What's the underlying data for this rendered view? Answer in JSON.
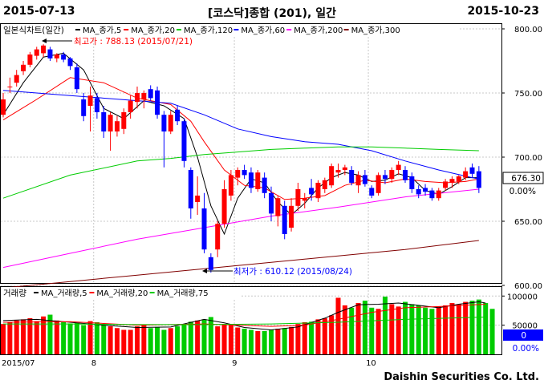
{
  "header": {
    "start_date": "2015-07-13",
    "title": "[코스닥]종합 (201), 일간",
    "end_date": "2015-10-23"
  },
  "legend": {
    "price_label": "일본식차트(일간)",
    "ma_items": [
      {
        "label": "MA_종가,5",
        "color": "#000000"
      },
      {
        "label": "MA_종가,20",
        "color": "#ff0000"
      },
      {
        "label": "MA_종가,120",
        "color": "#00cc00"
      },
      {
        "label": "MA_종가,60",
        "color": "#0000ff"
      },
      {
        "label": "MA_종가,200",
        "color": "#ff00ff"
      },
      {
        "label": "MA_종가,300",
        "color": "#800000"
      }
    ],
    "volume_label": "거래량",
    "vol_items": [
      {
        "label": "MA_거래량,5",
        "color": "#000000"
      },
      {
        "label": "MA_거래량,20",
        "color": "#ff0000"
      },
      {
        "label": "MA_거래량,75",
        "color": "#00cc00"
      }
    ]
  },
  "annotations": {
    "high": "최고가 : 788.13 (2015/07/21)",
    "low": "최저가 : 610.12 (2015/08/24)"
  },
  "price_axis": {
    "ticks": [
      {
        "value": 800,
        "label": "800.00"
      },
      {
        "value": 750,
        "label": "750.00"
      },
      {
        "value": 700,
        "label": "700.00"
      },
      {
        "value": 650,
        "label": "650.00"
      },
      {
        "value": 600,
        "label": "600.00"
      }
    ],
    "current_value": "676.30",
    "current_change": "0.00%"
  },
  "volume_axis": {
    "ticks": [
      {
        "value": 100000,
        "label": "100000"
      },
      {
        "value": 50000,
        "label": "50000"
      }
    ],
    "current_value": "0",
    "current_change": "0.00%"
  },
  "x_axis": {
    "labels": [
      {
        "index": 0,
        "label": "2015/07"
      },
      {
        "index": 14,
        "label": "8"
      },
      {
        "index": 35,
        "label": "9"
      },
      {
        "index": 55,
        "label": "10"
      }
    ]
  },
  "footer": {
    "company": "Daishin Securities Co. Ltd."
  },
  "colors": {
    "up": "#ff0000",
    "down": "#0000ff",
    "vol_up": "#ff0000",
    "vol_down": "#00cc00",
    "current_box": "#0000ff"
  },
  "chart_data": {
    "type": "candlestick",
    "price_range": [
      600,
      800
    ],
    "volume_range": [
      0,
      110000
    ],
    "candles": [
      {
        "o": 733,
        "h": 750,
        "l": 731,
        "c": 745
      },
      {
        "o": 755,
        "h": 762,
        "l": 750,
        "c": 755
      },
      {
        "o": 758,
        "h": 768,
        "l": 755,
        "c": 764
      },
      {
        "o": 767,
        "h": 775,
        "l": 764,
        "c": 772
      },
      {
        "o": 772,
        "h": 782,
        "l": 770,
        "c": 780
      },
      {
        "o": 779,
        "h": 786,
        "l": 776,
        "c": 784
      },
      {
        "o": 781,
        "h": 788,
        "l": 778,
        "c": 787
      },
      {
        "o": 784,
        "h": 786,
        "l": 775,
        "c": 777
      },
      {
        "o": 777,
        "h": 781,
        "l": 774,
        "c": 780
      },
      {
        "o": 780,
        "h": 782,
        "l": 774,
        "c": 776
      },
      {
        "o": 777,
        "h": 778,
        "l": 768,
        "c": 771
      },
      {
        "o": 770,
        "h": 773,
        "l": 750,
        "c": 753
      },
      {
        "o": 745,
        "h": 750,
        "l": 728,
        "c": 732
      },
      {
        "o": 740,
        "h": 755,
        "l": 720,
        "c": 748
      },
      {
        "o": 746,
        "h": 750,
        "l": 730,
        "c": 735
      },
      {
        "o": 735,
        "h": 740,
        "l": 715,
        "c": 720
      },
      {
        "o": 720,
        "h": 735,
        "l": 705,
        "c": 733
      },
      {
        "o": 720,
        "h": 732,
        "l": 716,
        "c": 728
      },
      {
        "o": 722,
        "h": 738,
        "l": 718,
        "c": 735
      },
      {
        "o": 735,
        "h": 748,
        "l": 730,
        "c": 744
      },
      {
        "o": 743,
        "h": 755,
        "l": 738,
        "c": 750
      },
      {
        "o": 745,
        "h": 752,
        "l": 738,
        "c": 750
      },
      {
        "o": 753,
        "h": 756,
        "l": 744,
        "c": 746
      },
      {
        "o": 752,
        "h": 755,
        "l": 730,
        "c": 733
      },
      {
        "o": 733,
        "h": 736,
        "l": 692,
        "c": 720
      },
      {
        "o": 720,
        "h": 736,
        "l": 718,
        "c": 733
      },
      {
        "o": 737,
        "h": 740,
        "l": 725,
        "c": 728
      },
      {
        "o": 728,
        "h": 730,
        "l": 692,
        "c": 697
      },
      {
        "o": 690,
        "h": 692,
        "l": 652,
        "c": 660
      },
      {
        "o": 665,
        "h": 685,
        "l": 655,
        "c": 670
      },
      {
        "o": 660,
        "h": 672,
        "l": 625,
        "c": 628
      },
      {
        "o": 622,
        "h": 625,
        "l": 610,
        "c": 612
      },
      {
        "o": 628,
        "h": 650,
        "l": 622,
        "c": 648
      },
      {
        "o": 648,
        "h": 682,
        "l": 645,
        "c": 675
      },
      {
        "o": 670,
        "h": 690,
        "l": 666,
        "c": 686
      },
      {
        "o": 684,
        "h": 692,
        "l": 678,
        "c": 690
      },
      {
        "o": 690,
        "h": 694,
        "l": 683,
        "c": 686
      },
      {
        "o": 688,
        "h": 692,
        "l": 672,
        "c": 676
      },
      {
        "o": 675,
        "h": 690,
        "l": 673,
        "c": 688
      },
      {
        "o": 684,
        "h": 688,
        "l": 668,
        "c": 672
      },
      {
        "o": 672,
        "h": 677,
        "l": 650,
        "c": 656
      },
      {
        "o": 654,
        "h": 670,
        "l": 646,
        "c": 668
      },
      {
        "o": 662,
        "h": 666,
        "l": 636,
        "c": 640
      },
      {
        "o": 645,
        "h": 668,
        "l": 642,
        "c": 662
      },
      {
        "o": 662,
        "h": 680,
        "l": 658,
        "c": 675
      },
      {
        "o": 666,
        "h": 672,
        "l": 660,
        "c": 668
      },
      {
        "o": 676,
        "h": 683,
        "l": 666,
        "c": 671
      },
      {
        "o": 668,
        "h": 682,
        "l": 665,
        "c": 680
      },
      {
        "o": 675,
        "h": 684,
        "l": 672,
        "c": 682
      },
      {
        "o": 678,
        "h": 695,
        "l": 676,
        "c": 693
      },
      {
        "o": 688,
        "h": 695,
        "l": 684,
        "c": 690
      },
      {
        "o": 690,
        "h": 694,
        "l": 686,
        "c": 692
      },
      {
        "o": 690,
        "h": 693,
        "l": 678,
        "c": 680
      },
      {
        "o": 678,
        "h": 689,
        "l": 672,
        "c": 686
      },
      {
        "o": 686,
        "h": 690,
        "l": 677,
        "c": 679
      },
      {
        "o": 676,
        "h": 678,
        "l": 668,
        "c": 670
      },
      {
        "o": 672,
        "h": 688,
        "l": 670,
        "c": 686
      },
      {
        "o": 686,
        "h": 690,
        "l": 679,
        "c": 683
      },
      {
        "o": 683,
        "h": 692,
        "l": 680,
        "c": 690
      },
      {
        "o": 690,
        "h": 697,
        "l": 686,
        "c": 694
      },
      {
        "o": 690,
        "h": 693,
        "l": 680,
        "c": 682
      },
      {
        "o": 685,
        "h": 688,
        "l": 672,
        "c": 675
      },
      {
        "o": 675,
        "h": 678,
        "l": 668,
        "c": 671
      },
      {
        "o": 676,
        "h": 679,
        "l": 670,
        "c": 673
      },
      {
        "o": 674,
        "h": 676,
        "l": 666,
        "c": 668
      },
      {
        "o": 668,
        "h": 676,
        "l": 666,
        "c": 674
      },
      {
        "o": 676,
        "h": 683,
        "l": 674,
        "c": 681
      },
      {
        "o": 680,
        "h": 685,
        "l": 676,
        "c": 683
      },
      {
        "o": 681,
        "h": 686,
        "l": 679,
        "c": 685
      },
      {
        "o": 684,
        "h": 692,
        "l": 682,
        "c": 689
      },
      {
        "o": 692,
        "h": 695,
        "l": 684,
        "c": 687
      },
      {
        "o": 689,
        "h": 693,
        "l": 672,
        "c": 676
      }
    ],
    "volumes": [
      52000,
      55000,
      58000,
      60000,
      62000,
      57000,
      65000,
      68000,
      58000,
      55000,
      53000,
      54000,
      50000,
      57000,
      55000,
      50000,
      48000,
      45000,
      42000,
      42000,
      48000,
      50000,
      45000,
      47000,
      42000,
      45000,
      48000,
      52000,
      56000,
      58000,
      60000,
      64000,
      48000,
      52000,
      50000,
      46000,
      44000,
      42000,
      40000,
      40000,
      42000,
      44000,
      45000,
      47000,
      52000,
      55000,
      56000,
      60000,
      62000,
      67000,
      97000,
      84000,
      80000,
      88000,
      92000,
      80000,
      78000,
      99000,
      86000,
      82000,
      90000,
      86000,
      84000,
      80000,
      78000,
      82000,
      84000,
      88000,
      86000,
      90000,
      92000,
      94000,
      88000,
      78000
    ],
    "ma": {
      "ma5": [
        [
          0,
          733
        ],
        [
          3,
          758
        ],
        [
          6,
          778
        ],
        [
          9,
          781
        ],
        [
          12,
          768
        ],
        [
          15,
          738
        ],
        [
          18,
          730
        ],
        [
          21,
          744
        ],
        [
          24,
          740
        ],
        [
          27,
          730
        ],
        [
          29,
          700
        ],
        [
          31,
          662
        ],
        [
          33,
          640
        ],
        [
          35,
          668
        ],
        [
          37,
          683
        ],
        [
          39,
          680
        ],
        [
          41,
          665
        ],
        [
          43,
          655
        ],
        [
          45,
          664
        ],
        [
          47,
          676
        ],
        [
          49,
          684
        ],
        [
          51,
          688
        ],
        [
          53,
          686
        ],
        [
          55,
          681
        ],
        [
          57,
          682
        ],
        [
          59,
          687
        ],
        [
          61,
          684
        ],
        [
          63,
          674
        ],
        [
          65,
          671
        ],
        [
          67,
          677
        ],
        [
          69,
          684
        ],
        [
          71,
          684
        ]
      ],
      "ma20": [
        [
          0,
          729
        ],
        [
          5,
          745
        ],
        [
          10,
          762
        ],
        [
          15,
          758
        ],
        [
          20,
          746
        ],
        [
          25,
          741
        ],
        [
          28,
          728
        ],
        [
          30,
          712
        ],
        [
          33,
          690
        ],
        [
          36,
          678
        ],
        [
          39,
          676
        ],
        [
          42,
          667
        ],
        [
          45,
          668
        ],
        [
          48,
          670
        ],
        [
          51,
          678
        ],
        [
          54,
          682
        ],
        [
          57,
          680
        ],
        [
          60,
          683
        ],
        [
          63,
          681
        ],
        [
          66,
          680
        ],
        [
          69,
          681
        ],
        [
          71,
          683
        ]
      ],
      "ma60": [
        [
          0,
          752
        ],
        [
          10,
          748
        ],
        [
          20,
          744
        ],
        [
          25,
          742
        ],
        [
          30,
          733
        ],
        [
          35,
          722
        ],
        [
          40,
          716
        ],
        [
          45,
          712
        ],
        [
          50,
          710
        ],
        [
          55,
          705
        ],
        [
          60,
          697
        ],
        [
          65,
          690
        ],
        [
          70,
          684
        ],
        [
          71,
          683
        ]
      ],
      "ma120": [
        [
          0,
          668
        ],
        [
          10,
          686
        ],
        [
          20,
          697
        ],
        [
          25,
          699
        ],
        [
          30,
          702
        ],
        [
          35,
          704
        ],
        [
          40,
          706
        ],
        [
          45,
          707
        ],
        [
          50,
          708
        ],
        [
          55,
          708
        ],
        [
          60,
          707
        ],
        [
          65,
          706
        ],
        [
          71,
          705
        ]
      ],
      "ma200": [
        [
          0,
          614
        ],
        [
          10,
          625
        ],
        [
          20,
          636
        ],
        [
          30,
          645
        ],
        [
          40,
          654
        ],
        [
          50,
          661
        ],
        [
          60,
          669
        ],
        [
          71,
          675
        ]
      ],
      "ma300": [
        [
          0,
          598
        ],
        [
          10,
          603
        ],
        [
          20,
          608
        ],
        [
          30,
          613
        ],
        [
          40,
          618
        ],
        [
          50,
          623
        ],
        [
          60,
          628
        ],
        [
          71,
          635
        ]
      ],
      "vma5": [
        [
          0,
          58
        ],
        [
          5,
          60
        ],
        [
          10,
          55
        ],
        [
          15,
          50
        ],
        [
          20,
          46
        ],
        [
          25,
          47
        ],
        [
          30,
          60
        ],
        [
          33,
          54
        ],
        [
          36,
          46
        ],
        [
          40,
          42
        ],
        [
          44,
          47
        ],
        [
          48,
          62
        ],
        [
          50,
          72
        ],
        [
          53,
          85
        ],
        [
          56,
          86
        ],
        [
          59,
          88
        ],
        [
          62,
          84
        ],
        [
          65,
          80
        ],
        [
          68,
          86
        ],
        [
          71,
          90
        ],
        [
          72,
          88
        ]
      ],
      "vma20": [
        [
          0,
          55
        ],
        [
          10,
          56
        ],
        [
          20,
          50
        ],
        [
          30,
          52
        ],
        [
          40,
          48
        ],
        [
          45,
          50
        ],
        [
          50,
          60
        ],
        [
          55,
          72
        ],
        [
          60,
          80
        ],
        [
          65,
          82
        ],
        [
          72,
          86
        ]
      ],
      "vma75": [
        [
          0,
          52
        ],
        [
          10,
          52
        ],
        [
          20,
          51
        ],
        [
          30,
          51
        ],
        [
          40,
          52
        ],
        [
          50,
          55
        ],
        [
          60,
          60
        ],
        [
          72,
          64
        ]
      ]
    }
  }
}
